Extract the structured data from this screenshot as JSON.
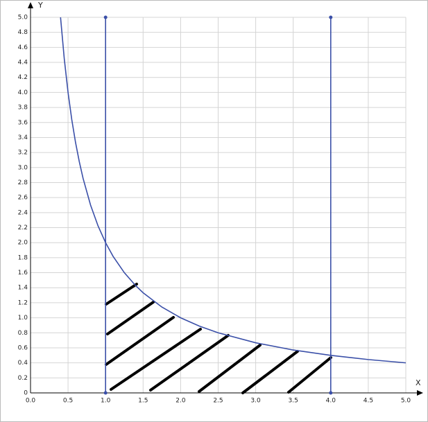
{
  "chart_data": {
    "type": "line",
    "x_label": "X",
    "y_label": "Y",
    "xlim": [
      0,
      5
    ],
    "ylim": [
      0,
      5
    ],
    "grid": true,
    "xticks": [
      {
        "value": 0,
        "label": "0.0"
      },
      0.5,
      {
        "value": 1,
        "label": "1.0"
      },
      1.5,
      {
        "value": 2,
        "label": "2.0"
      },
      2.5,
      {
        "value": 3,
        "label": "3.0"
      },
      3.5,
      {
        "value": 4,
        "label": "4.0"
      },
      4.5,
      {
        "value": 5,
        "label": "5.0"
      }
    ],
    "yticks": [
      0,
      0.2,
      0.4,
      0.6,
      0.8,
      {
        "value": 1,
        "label": "1.0"
      },
      1.2,
      1.4,
      1.6,
      1.8,
      {
        "value": 2,
        "label": "2.0"
      },
      2.2,
      2.4,
      2.6,
      2.8,
      {
        "value": 3,
        "label": "3.0"
      },
      3.2,
      3.4,
      3.6,
      3.8,
      {
        "value": 4,
        "label": "4.0"
      },
      4.2,
      4.4,
      4.6,
      4.8,
      {
        "value": 5,
        "label": "5.0"
      }
    ],
    "series": [
      {
        "color": "#3a4fa8",
        "markers": false,
        "x": [
          0.4,
          0.45,
          0.5,
          0.55,
          0.6,
          0.65,
          0.7,
          0.8,
          0.9,
          1,
          1.1,
          1.25,
          1.4,
          1.5,
          1.75,
          2,
          2.25,
          2.5,
          3,
          3.5,
          4,
          4.5,
          5
        ],
        "values": [
          5,
          4.444,
          4,
          3.636,
          3.333,
          3.077,
          2.857,
          2.5,
          2.222,
          2,
          1.818,
          1.6,
          1.429,
          1.333,
          1.143,
          1,
          0.889,
          0.8,
          0.667,
          0.571,
          0.5,
          0.444,
          0.4
        ]
      },
      {
        "color": "#3a4fa8",
        "markers": true,
        "x": [
          1,
          1
        ],
        "values": [
          0,
          5
        ]
      },
      {
        "color": "#3a4fa8",
        "markers": true,
        "x": [
          4,
          4
        ],
        "values": [
          0,
          5
        ]
      }
    ]
  }
}
